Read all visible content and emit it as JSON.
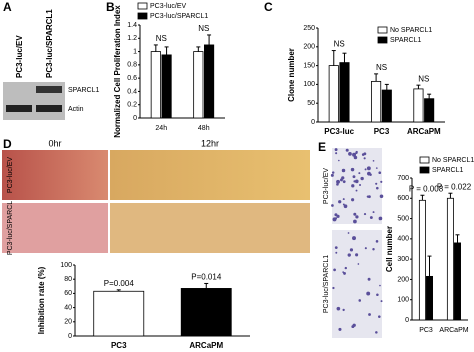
{
  "panel_labels": [
    "A",
    "B",
    "C",
    "D",
    "E"
  ],
  "blot": {
    "lanes": [
      "PC3-luc/EV",
      "PC3-luc/SPARCL1"
    ],
    "bands": [
      "SPARCL1",
      "Actin"
    ]
  },
  "wound": {
    "times": [
      "0hr",
      "12hr"
    ],
    "rows": [
      "PC3-luc/EV",
      "PC3-luc/SPARCL"
    ]
  },
  "invasion": {
    "rows": [
      "PC3-luc/EV",
      "PC3-luc/SPARCL1"
    ]
  },
  "chart_data": [
    {
      "type": "bar",
      "ylabel": "Normalized Cell Proliferation Index",
      "categories": [
        "24h",
        "48h"
      ],
      "series": [
        {
          "name": "PC3-luc/EV",
          "color": "#ffffff",
          "values": [
            1.0,
            1.0
          ],
          "errors": [
            0.1,
            0.07
          ]
        },
        {
          "name": "PC3-luc/SPARCL1",
          "color": "#000000",
          "values": [
            0.95,
            1.1
          ],
          "errors": [
            0.12,
            0.15
          ]
        }
      ],
      "annotations": [
        "NS",
        "NS"
      ],
      "ylim": [
        0,
        1.4
      ],
      "yticks": [
        0,
        0.2,
        0.4,
        0.6,
        0.8,
        1,
        1.2,
        1.4
      ]
    },
    {
      "type": "bar",
      "ylabel": "Clone number",
      "categories": [
        "PC3-luc",
        "PC3",
        "ARCaPM"
      ],
      "series": [
        {
          "name": "No SPARCL1",
          "color": "#ffffff",
          "values": [
            150,
            108,
            88
          ],
          "errors": [
            40,
            20,
            10
          ]
        },
        {
          "name": "SPARCL1",
          "color": "#000000",
          "values": [
            158,
            85,
            62
          ],
          "errors": [
            25,
            15,
            12
          ]
        }
      ],
      "annotations": [
        "NS",
        "NS",
        "NS"
      ],
      "ylim": [
        0,
        250
      ],
      "yticks": [
        0,
        50,
        100,
        150,
        200,
        250
      ]
    },
    {
      "type": "bar",
      "ylabel": "Inhibition rate (%)",
      "categories": [
        "PC3",
        "ARCaPM"
      ],
      "series": [
        {
          "color": "#ffffff",
          "values": [
            63,
            null
          ],
          "errors": [
            2,
            null
          ]
        },
        {
          "color": "#000000",
          "values": [
            null,
            67
          ],
          "errors": [
            null,
            7
          ]
        }
      ],
      "annotations": [
        "P=0.004",
        "P=0.014"
      ],
      "ylim": [
        0,
        100
      ],
      "yticks": [
        0,
        20,
        40,
        60,
        80,
        100
      ]
    },
    {
      "type": "bar",
      "ylabel": "Cell number",
      "categories": [
        "PC3",
        "ARCaPM"
      ],
      "series": [
        {
          "name": "No SPARCL1",
          "color": "#ffffff",
          "values": [
            590,
            600
          ],
          "errors": [
            25,
            25
          ]
        },
        {
          "name": "SPARCL1",
          "color": "#000000",
          "values": [
            215,
            380
          ],
          "errors": [
            100,
            40
          ]
        }
      ],
      "annotations": [
        "P = 0.008",
        "P = 0.022"
      ],
      "ylim": [
        0,
        700
      ],
      "yticks": [
        0,
        100,
        200,
        300,
        400,
        500,
        600,
        700
      ]
    }
  ]
}
